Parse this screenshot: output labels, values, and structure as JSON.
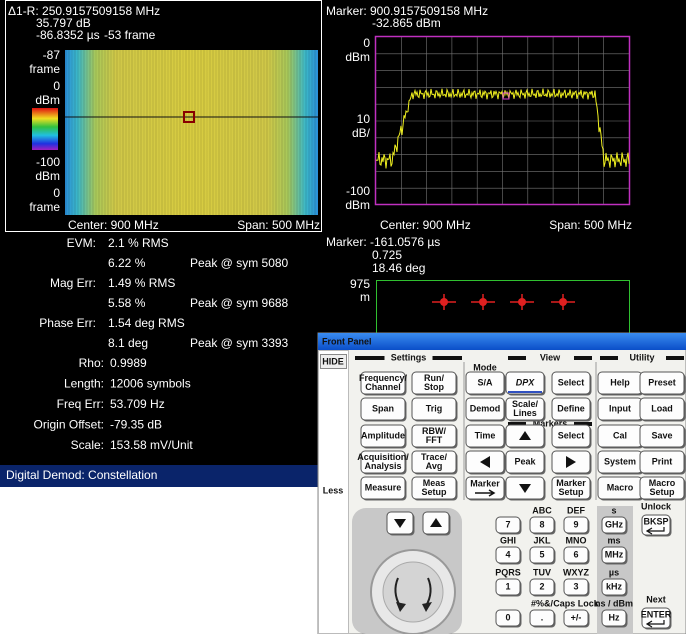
{
  "spectrogram": {
    "header": [
      "Δ1-R: 250.9157509158 MHz",
      "35.797 dB",
      "-86.8352 µs",
      "-53 frame"
    ],
    "y_labels": [
      "-87",
      "frame",
      "0",
      "dBm",
      "-100",
      "dBm",
      "0",
      "frame"
    ],
    "footer": {
      "center": "Center: 900 MHz",
      "span": "Span: 500 MHz"
    }
  },
  "spectrum": {
    "header": [
      "Marker: 900.9157509158 MHz",
      "-32.865 dBm"
    ],
    "y_labels": [
      "0",
      "dBm",
      "10",
      "dB/",
      "-100",
      "dBm"
    ],
    "footer": {
      "center": "Center: 900 MHz",
      "span": "Span: 500 MHz"
    }
  },
  "results": {
    "rows": [
      {
        "label": "EVM:",
        "rms": "2.1 % RMS",
        "peak": "6.22 %",
        "peak_at": "Peak @ sym 5080"
      },
      {
        "label": "Mag Err:",
        "rms": "1.49 % RMS",
        "peak": "5.58 %",
        "peak_at": "Peak @ sym 9688"
      },
      {
        "label": "Phase Err:",
        "rms": "1.54 deg RMS",
        "peak": "8.1 deg",
        "peak_at": "Peak @ sym 3393"
      },
      {
        "label": "Rho:",
        "value": "0.9989"
      },
      {
        "label": "Length:",
        "value": "12006 symbols"
      },
      {
        "label": "Freq Err:",
        "value": "53.709 Hz"
      },
      {
        "label": "Origin Offset:",
        "value": "-79.35 dB"
      },
      {
        "label": "Scale:",
        "value": "153.58  mV/Unit"
      }
    ]
  },
  "status_bar": "Digital Demod: Constellation",
  "constellation": {
    "header": [
      "Marker: -161.0576 µs",
      "0.725",
      "18.46 deg"
    ],
    "y_labels": [
      "975",
      "m"
    ]
  },
  "front_panel": {
    "title": "Front Panel",
    "side": [
      "HIDE",
      "Less"
    ],
    "groups": [
      "Settings",
      "Mode",
      "View",
      "Markers",
      "Utility"
    ],
    "buttons": [
      {
        "lines": [
          "Frequency/",
          "Channel"
        ]
      },
      {
        "lines": [
          "Run/",
          "Stop"
        ]
      },
      {
        "lines": [
          "Span"
        ]
      },
      {
        "lines": [
          "Trig"
        ]
      },
      {
        "lines": [
          "Amplitude"
        ]
      },
      {
        "lines": [
          "RBW/",
          "FFT"
        ]
      },
      {
        "lines": [
          "Acquisition/",
          "Analysis"
        ]
      },
      {
        "lines": [
          "Trace/",
          "Avg"
        ]
      },
      {
        "lines": [
          "Measure"
        ]
      },
      {
        "lines": [
          "Meas",
          "Setup"
        ]
      },
      {
        "lines": [
          "S/A"
        ]
      },
      {
        "lines": [
          "Demod"
        ]
      },
      {
        "lines": [
          "Time"
        ]
      },
      {
        "lines": [
          "DPX"
        ]
      },
      {
        "lines": [
          "Select"
        ]
      },
      {
        "lines": [
          "Scale/",
          "Lines"
        ]
      },
      {
        "lines": [
          "Define"
        ]
      },
      {
        "lines": [
          "Select"
        ]
      },
      {
        "lines": [
          "Peak"
        ]
      },
      {
        "lines": [
          "Marker"
        ]
      },
      {
        "lines": [
          "Marker",
          "Setup"
        ]
      },
      {
        "lines": [
          "Help"
        ]
      },
      {
        "lines": [
          "Preset"
        ]
      },
      {
        "lines": [
          "Input"
        ]
      },
      {
        "lines": [
          "Load"
        ]
      },
      {
        "lines": [
          "Cal"
        ]
      },
      {
        "lines": [
          "Save"
        ]
      },
      {
        "lines": [
          "System"
        ]
      },
      {
        "lines": [
          "Print"
        ]
      },
      {
        "lines": [
          "Macro"
        ]
      },
      {
        "lines": [
          "Macro",
          "Setup"
        ]
      }
    ],
    "keys": [
      {
        "label": "7"
      },
      {
        "label": "8",
        "caption": "ABC"
      },
      {
        "label": "9",
        "caption": "DEF"
      },
      {
        "label": "GHz",
        "caption": "s"
      },
      {
        "label": "BKSP",
        "caption": "Unlock"
      },
      {
        "label": "4",
        "caption": "GHI"
      },
      {
        "label": "5",
        "caption": "JKL"
      },
      {
        "label": "6",
        "caption": "MNO"
      },
      {
        "label": "MHz",
        "caption": "ms"
      },
      {
        "label": "1",
        "caption": "PQRS"
      },
      {
        "label": "2",
        "caption": "TUV"
      },
      {
        "label": "3",
        "caption": "WXYZ"
      },
      {
        "label": "kHz",
        "caption": "µs"
      },
      {
        "label": "0"
      },
      {
        "label": ".",
        "caption": "#%&/"
      },
      {
        "label": "+/-",
        "caption": "Caps Lock"
      },
      {
        "label": "Hz",
        "caption": "ns / dBm"
      },
      {
        "label": "ENTER",
        "caption": "Next"
      }
    ]
  }
}
